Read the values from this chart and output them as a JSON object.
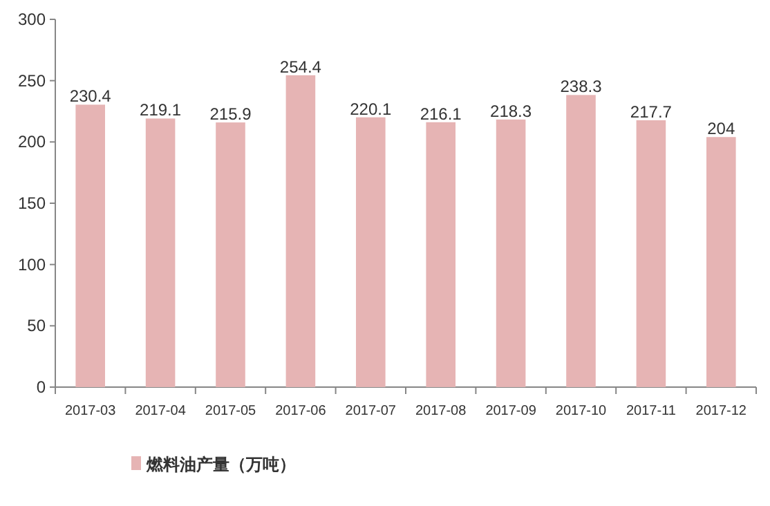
{
  "chart_data": {
    "type": "bar",
    "categories": [
      "2017-03",
      "2017-04",
      "2017-05",
      "2017-06",
      "2017-07",
      "2017-08",
      "2017-09",
      "2017-10",
      "2017-11",
      "2017-12"
    ],
    "series": [
      {
        "name": "燃料油产量（万吨）",
        "color": "#e6b4b4",
        "values": [
          230.4,
          219.1,
          215.9,
          254.4,
          220.1,
          216.1,
          218.3,
          238.3,
          217.7,
          204
        ]
      }
    ],
    "ylim": [
      0,
      300
    ],
    "yticks": [
      0,
      50,
      100,
      150,
      200,
      250,
      300
    ],
    "data_labels": true,
    "legend": "bottom"
  }
}
